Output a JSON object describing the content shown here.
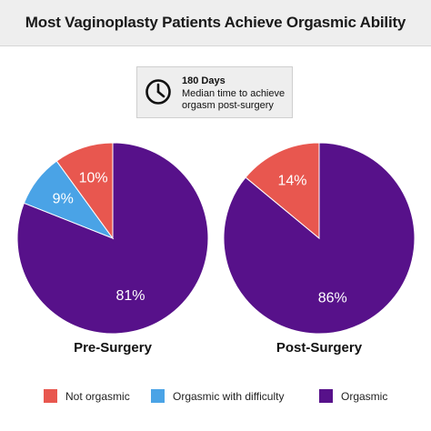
{
  "title": "Most Vaginoplasty Patients Achieve Orgasmic Ability",
  "info": {
    "icon": "clock-icon",
    "headline": "180 Days",
    "text": "Median time to achieve orgasm post-surgery"
  },
  "colors": {
    "not_orgasmic": "#e8574f",
    "orgasmic_with_difficulty": "#4aa3e6",
    "orgasmic": "#57118a"
  },
  "chart_data": [
    {
      "type": "pie",
      "title": "Pre-Surgery",
      "slices": [
        {
          "name": "Orgasmic",
          "value": 81,
          "label": "81%",
          "color": "#57118a"
        },
        {
          "name": "Orgasmic with difficulty",
          "value": 9,
          "label": "9%",
          "color": "#4aa3e6"
        },
        {
          "name": "Not orgasmic",
          "value": 10,
          "label": "10%",
          "color": "#e8574f"
        }
      ]
    },
    {
      "type": "pie",
      "title": "Post-Surgery",
      "slices": [
        {
          "name": "Orgasmic",
          "value": 86,
          "label": "86%",
          "color": "#57118a"
        },
        {
          "name": "Not orgasmic",
          "value": 14,
          "label": "14%",
          "color": "#e8574f"
        }
      ]
    }
  ],
  "legend": [
    {
      "label": "Not orgasmic",
      "color": "#e8574f"
    },
    {
      "label": "Orgasmic with difficulty",
      "color": "#4aa3e6"
    },
    {
      "label": "Orgasmic",
      "color": "#57118a"
    }
  ]
}
